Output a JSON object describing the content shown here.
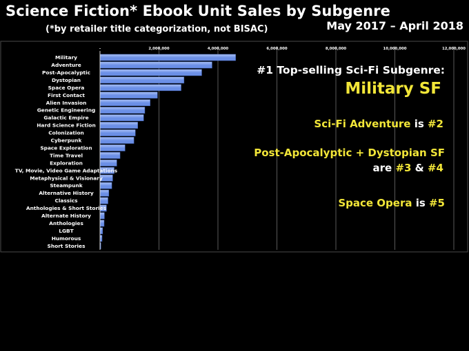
{
  "header": {
    "title": "Science Fiction* Ebook Unit Sales by Subgenre",
    "subtitle": "(*by retailer title categorization, not BISAC)",
    "date_range": "May 2017 – April 2018"
  },
  "colors": {
    "background": "#000000",
    "bar_fill": "#6B8FE6",
    "bar_highlight": "#A9C0F5",
    "axis": "#d0d0d0",
    "gridline": "#5a5a5a",
    "accent_yellow": "#F2E638",
    "text": "#ffffff"
  },
  "annotations": {
    "line1": "#1 Top-selling Sci-Fi Subgenre:",
    "line2": "Military SF",
    "line3_a": "Sci-Fi Adventure",
    "line3_b": " is ",
    "line3_c": "#2",
    "line4": "Post-Apocalyptic + Dystopian SF",
    "line5_a": "are ",
    "line5_b": "#3",
    "line5_c": " & ",
    "line5_d": "#4",
    "line6_a": "Space Opera",
    "line6_b": " is ",
    "line6_c": "#5"
  },
  "chart_data": {
    "type": "bar",
    "orientation": "horizontal",
    "title": "",
    "xlabel": "",
    "ylabel": "",
    "xlim": [
      0,
      12000000
    ],
    "x_ticks": [
      0,
      2000000,
      4000000,
      6000000,
      8000000,
      10000000,
      12000000
    ],
    "x_tick_labels": [
      "-",
      "2,000,000",
      "4,000,000",
      "6,000,000",
      "8,000,000",
      "10,000,000",
      "12,000,000"
    ],
    "grid": true,
    "categories": [
      "Military",
      "Adventure",
      "Post-Apocalyptic",
      "Dystopian",
      "Space Opera",
      "First Contact",
      "Alien Invasion",
      "Genetic Engineering",
      "Galactic Empire",
      "Hard Science Fiction",
      "Colonization",
      "Cyberpunk",
      "Space Exploration",
      "Time Travel",
      "Exploration",
      "TV, Movie, Video Game Adaptations",
      "Metaphysical & Visionary",
      "Steampunk",
      "Alternative History",
      "Classics",
      "Anthologies & Short Stories",
      "Alternate History",
      "Anthologies",
      "LGBT",
      "Humorous",
      "Short Stories"
    ],
    "values": [
      4600000,
      3800000,
      3450000,
      2850000,
      2750000,
      1950000,
      1700000,
      1520000,
      1480000,
      1280000,
      1200000,
      1150000,
      850000,
      680000,
      570000,
      480000,
      430000,
      400000,
      300000,
      270000,
      220000,
      150000,
      140000,
      90000,
      70000,
      30000
    ]
  }
}
